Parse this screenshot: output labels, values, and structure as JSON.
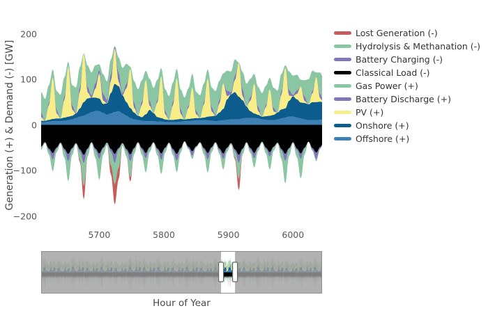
{
  "figure": {
    "y_axis_title": "Generation (+) & Demand (-) [GW]",
    "x_axis_title": "Hour of Year",
    "y_ticks": [
      200,
      100,
      0,
      -100,
      -200
    ],
    "y_tick_labels": [
      "200",
      "100",
      "0",
      "−100",
      "−200"
    ],
    "x_ticks": [
      5700,
      5800,
      5900,
      6000
    ],
    "x_tick_labels": [
      "5700",
      "5800",
      "5900",
      "6000"
    ]
  },
  "chart_data": {
    "type": "area",
    "stacked": true,
    "xlabel": "Hour of Year",
    "ylabel": "Generation (+) & Demand (-) [GW]",
    "x_axis_range": [
      5610,
      6045
    ],
    "y_axis_range": [
      -219,
      222
    ],
    "grid": false,
    "legend_position": "right",
    "x_start": 5604,
    "x_step": 6,
    "x_count": 75,
    "positive_stack_order": [
      "Offshore (+)",
      "Onshore (+)",
      "PV (+)",
      "Battery Discharge (+)",
      "Gas Power (+)"
    ],
    "negative_stack_order": [
      "Classical Load (-)",
      "Battery Charging (-)",
      "Hydrolysis & Methanation (-)",
      "Lost Generation (-)"
    ],
    "series": [
      {
        "name": "Lost Generation (-)",
        "color": "#c65d5c",
        "sign": "-",
        "values": [
          0,
          0,
          0,
          0,
          0,
          0,
          0,
          0,
          0,
          0,
          0,
          -5,
          -30,
          0,
          0,
          0,
          0,
          0,
          0,
          -20,
          -45,
          -25,
          0,
          0,
          -10,
          0,
          0,
          0,
          0,
          0,
          0,
          0,
          0,
          0,
          0,
          0,
          0,
          0,
          0,
          0,
          0,
          0,
          0,
          0,
          0,
          0,
          0,
          0,
          0,
          0,
          0,
          -4,
          -25,
          0,
          0,
          0,
          0,
          0,
          0,
          0,
          0,
          0,
          0,
          0,
          0,
          0,
          0,
          0,
          0,
          0,
          0,
          0,
          0,
          0,
          0
        ]
      },
      {
        "name": "Hydrolysis & Methanation (-)",
        "color": "#8bc6a3",
        "sign": "-",
        "values": [
          -40,
          -6,
          -2,
          -9,
          -26,
          -8,
          -2,
          -15,
          -44,
          -13,
          -2,
          -18,
          -50,
          -15,
          -2,
          -16,
          -46,
          -14,
          -5,
          -30,
          -46,
          -40,
          -5,
          -12,
          -35,
          -11,
          -2,
          -11,
          -31,
          -9,
          -2,
          -11,
          -31,
          -9,
          -2,
          -9,
          -25,
          -8,
          -1,
          -2,
          -7,
          -2,
          -2,
          -10,
          -29,
          -9,
          -2,
          -8,
          -23,
          -7,
          -3,
          -12,
          -35,
          -11,
          -2,
          -7,
          -20,
          -6,
          -2,
          -10,
          -28,
          -8,
          -2,
          -18,
          -50,
          -15,
          -2,
          -15,
          -43,
          -13,
          0,
          -2,
          -5,
          -2,
          0
        ]
      },
      {
        "name": "Battery Charging (-)",
        "color": "#7f77b8",
        "sign": "-",
        "values": [
          -18,
          -1,
          0,
          -4,
          -14,
          -2,
          0,
          -4,
          -16,
          -2,
          0,
          -5,
          -18,
          -2,
          0,
          -4,
          -12,
          -2,
          0,
          -6,
          -20,
          -3,
          0,
          -4,
          -15,
          -2,
          0,
          -4,
          -12,
          -2,
          0,
          -4,
          -14,
          -2,
          0,
          -4,
          -15,
          -2,
          0,
          -3,
          -10,
          -1,
          0,
          -4,
          -14,
          -2,
          0,
          -4,
          -12,
          -2,
          0,
          -5,
          -18,
          -2,
          0,
          -4,
          -12,
          -2,
          0,
          -3,
          -10,
          -1,
          0,
          -4,
          -15,
          -2,
          0,
          -4,
          -12,
          -2,
          0,
          -4,
          -14,
          -2,
          0
        ]
      },
      {
        "name": "Classical Load (-)",
        "color": "#000000",
        "sign": "-",
        "values": [
          -63,
          -48,
          -38,
          -52,
          -62,
          -50,
          -39,
          -53,
          -64,
          -51,
          -40,
          -54,
          -66,
          -52,
          -38,
          -52,
          -63,
          -50,
          -39,
          -53,
          -64,
          -51,
          -40,
          -53,
          -65,
          -51,
          -38,
          -51,
          -62,
          -49,
          -38,
          -52,
          -63,
          -50,
          -39,
          -53,
          -64,
          -51,
          -36,
          -48,
          -58,
          -47,
          -38,
          -51,
          -62,
          -49,
          -38,
          -52,
          -63,
          -50,
          -40,
          -54,
          -66,
          -52,
          -38,
          -51,
          -62,
          -49,
          -37,
          -50,
          -60,
          -48,
          -39,
          -53,
          -64,
          -51,
          -38,
          -52,
          -63,
          -50,
          -37,
          -51,
          -61,
          -49,
          -38
        ]
      },
      {
        "name": "Gas Power (+)",
        "color": "#8bc6a3",
        "sign": "+",
        "values": [
          25,
          45,
          48,
          38,
          18,
          41,
          52,
          42,
          10,
          44,
          55,
          44,
          0,
          47,
          50,
          40,
          12,
          43,
          40,
          32,
          0,
          34,
          55,
          44,
          5,
          47,
          58,
          46,
          20,
          49,
          55,
          44,
          18,
          47,
          52,
          42,
          20,
          44,
          48,
          38,
          30,
          41,
          50,
          40,
          20,
          43,
          52,
          42,
          22,
          44,
          45,
          36,
          0,
          38,
          50,
          40,
          22,
          43,
          52,
          42,
          25,
          44,
          48,
          38,
          5,
          41,
          42,
          34,
          15,
          36,
          55,
          44,
          10,
          47,
          50
        ]
      },
      {
        "name": "Battery Discharge (+)",
        "color": "#7f77b8",
        "sign": "+",
        "values": [
          0,
          10,
          0,
          6,
          0,
          8,
          0,
          8,
          0,
          10,
          2,
          10,
          0,
          12,
          5,
          12,
          8,
          15,
          8,
          15,
          5,
          20,
          5,
          10,
          0,
          12,
          0,
          8,
          0,
          10,
          0,
          6,
          0,
          8,
          0,
          8,
          0,
          10,
          0,
          5,
          0,
          8,
          0,
          6,
          0,
          10,
          2,
          8,
          0,
          12,
          5,
          10,
          0,
          15,
          0,
          8,
          0,
          10,
          0,
          5,
          0,
          8,
          0,
          8,
          0,
          12,
          3,
          8,
          0,
          10,
          0,
          6,
          0,
          10,
          0
        ]
      },
      {
        "name": "PV (+)",
        "color": "#f7ee87",
        "sign": "+",
        "values": [
          60,
          8,
          0,
          32,
          91,
          11,
          0,
          39,
          111,
          13,
          0,
          37,
          107,
          13,
          0,
          19,
          55,
          7,
          0,
          27,
          78,
          9,
          0,
          30,
          86,
          10,
          0,
          27,
          76,
          9,
          0,
          32,
          92,
          11,
          0,
          32,
          91,
          11,
          0,
          24,
          68,
          8,
          0,
          29,
          84,
          10,
          0,
          20,
          56,
          7,
          0,
          26,
          75,
          9,
          0,
          23,
          65,
          8,
          0,
          20,
          58,
          7,
          0,
          32,
          90,
          11,
          0,
          12,
          35,
          4,
          0,
          19,
          55,
          7,
          0
        ]
      },
      {
        "name": "Onshore (+)",
        "color": "#0c5d8d",
        "sign": "+",
        "values": [
          3,
          3,
          3,
          4,
          5,
          6,
          6,
          7,
          8,
          8,
          10,
          18,
          30,
          34,
          32,
          30,
          28,
          20,
          25,
          45,
          62,
          55,
          40,
          30,
          22,
          15,
          10,
          8,
          15,
          25,
          18,
          10,
          8,
          6,
          5,
          5,
          6,
          6,
          4,
          5,
          5,
          5,
          5,
          6,
          8,
          10,
          12,
          18,
          25,
          45,
          55,
          60,
          50,
          40,
          25,
          15,
          10,
          8,
          6,
          8,
          10,
          12,
          15,
          20,
          20,
          35,
          45,
          40,
          35,
          36,
          35,
          40,
          40,
          40,
          38
        ]
      },
      {
        "name": "Offshore (+)",
        "color": "#3f80b4",
        "sign": "+",
        "values": [
          5,
          6,
          6,
          7,
          8,
          8,
          8,
          9,
          10,
          12,
          15,
          18,
          20,
          24,
          28,
          30,
          30,
          26,
          22,
          25,
          28,
          30,
          25,
          20,
          15,
          12,
          10,
          9,
          8,
          8,
          8,
          7,
          7,
          6,
          6,
          6,
          6,
          7,
          8,
          8,
          9,
          10,
          10,
          10,
          10,
          9,
          8,
          9,
          10,
          11,
          12,
          12,
          12,
          14,
          15,
          15,
          15,
          14,
          12,
          11,
          10,
          10,
          12,
          14,
          16,
          18,
          18,
          16,
          14,
          12,
          10,
          10,
          10,
          11,
          11
        ]
      }
    ],
    "rangeslider": {
      "full_hour_range": [
        0,
        8760
      ],
      "window": [
        5610,
        6045
      ],
      "tile_scales": [
        1,
        0.85,
        1.1,
        0.9,
        1.05,
        0.8,
        1.15,
        0.95,
        1,
        0.9,
        1.1,
        0.85,
        1.05,
        0.95,
        0.9,
        1.1,
        1,
        0.85,
        0.95,
        1.05
      ]
    }
  }
}
